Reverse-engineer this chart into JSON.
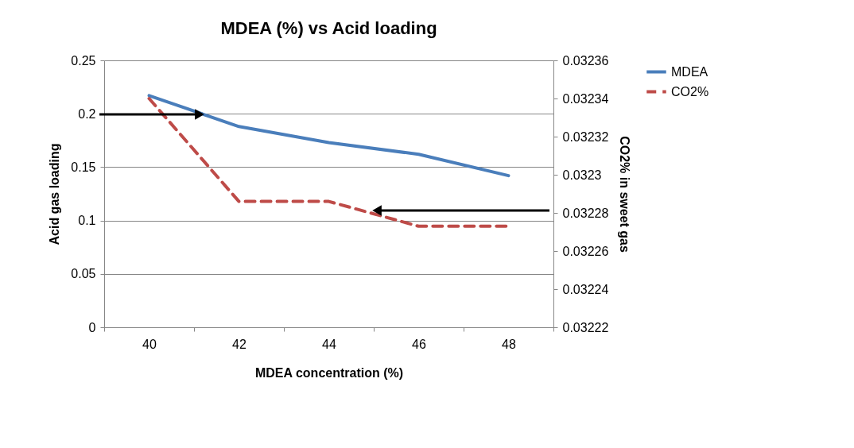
{
  "chart_data": {
    "type": "line",
    "title": "MDEA (%) vs Acid loading",
    "xlabel": "MDEA concentration (%)",
    "ylabel": "Acid gas loading",
    "y2label": "CO2% in sweet gas",
    "categories": [
      "40",
      "42",
      "44",
      "46",
      "48"
    ],
    "series": [
      {
        "name": "MDEA",
        "color": "#4a7ebb",
        "line_style": "solid",
        "values": [
          0.217,
          0.188,
          0.173,
          0.162,
          0.142
        ]
      },
      {
        "name": "CO2%",
        "color": "#be4b48",
        "line_style": "dashed",
        "axis": "y2",
        "values": [
          0.03234,
          0.032286,
          0.032286,
          0.032273,
          0.032273
        ]
      }
    ],
    "ylim": [
      0,
      0.25
    ],
    "yticks": [
      0,
      0.05,
      0.1,
      0.15,
      0.2,
      0.25
    ],
    "y2lim": [
      0.03222,
      0.03236
    ],
    "y2ticks": [
      0.03222,
      0.03224,
      0.03226,
      0.03228,
      0.0323,
      0.03232,
      0.03234,
      0.03236
    ],
    "grid": "y",
    "legend": "right",
    "marker": "none"
  }
}
